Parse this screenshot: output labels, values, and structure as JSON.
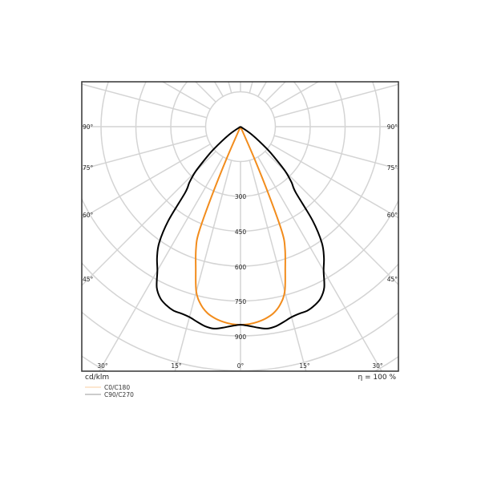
{
  "chart_data": {
    "type": "polar",
    "unit_label": "cd/klm",
    "efficiency_label": "η = 100 %",
    "radial_ticks": [
      150,
      300,
      450,
      600,
      750,
      900,
      1050,
      1200,
      1350
    ],
    "radial_tick_labels": [
      "300",
      "450",
      "600",
      "750",
      "900"
    ],
    "angle_labels_side": [
      "90°",
      "75°",
      "60°",
      "45°"
    ],
    "angle_labels_bottom": [
      "30°",
      "15°",
      "0°",
      "15°",
      "30°"
    ],
    "angle_step_deg": 15,
    "grid": true,
    "legend_placement": "bottom-left",
    "series": [
      {
        "name": "C0/C180",
        "color": "#f28c1c",
        "legend_color": "#f8cfa0",
        "angles_deg": [
          0,
          2.5,
          5,
          7.5,
          10,
          12.5,
          15,
          17.5,
          20,
          21.5,
          22.5,
          23.5,
          25
        ],
        "values": [
          852,
          850,
          843,
          832,
          815,
          785,
          735,
          640,
          560,
          490,
          330,
          150,
          0
        ]
      },
      {
        "name": "C90/C270",
        "color": "#000000",
        "legend_color": "#999999",
        "angles_deg": [
          0,
          2.5,
          5,
          7.5,
          10,
          12.5,
          15,
          17.5,
          20,
          22.5,
          25,
          27.5,
          30,
          32.5,
          35,
          37.5,
          40,
          42.5,
          45,
          47.5,
          50,
          55,
          60
        ],
        "values": [
          852,
          858,
          868,
          876,
          872,
          860,
          848,
          843,
          842,
          832,
          815,
          780,
          715,
          668,
          610,
          510,
          370,
          325,
          275,
          205,
          150,
          60,
          0
        ]
      }
    ]
  }
}
